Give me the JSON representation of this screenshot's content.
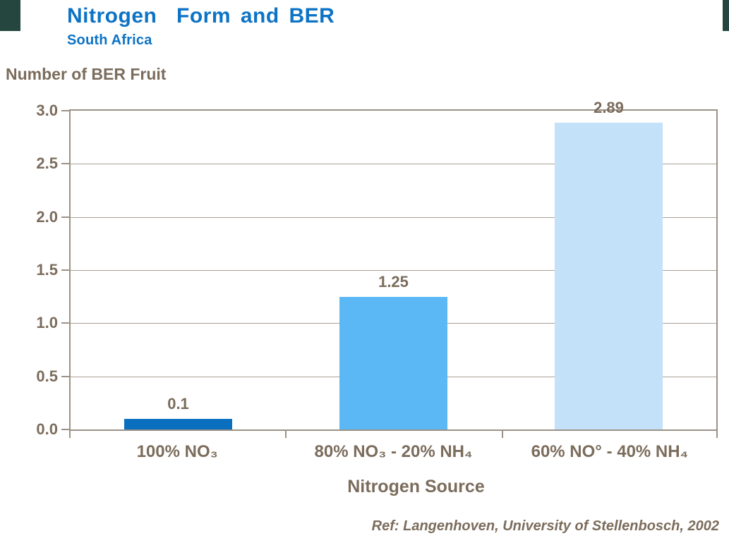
{
  "slide": {
    "title": "Nitrogen  Form and BER",
    "subtitle": "South Africa",
    "reference": "Ref: Langenhoven, University of Stellenbosch, 2002"
  },
  "chart_data": {
    "type": "bar",
    "title": "Nitrogen Form and BER",
    "subtitle": "South Africa",
    "ylabel": "Number of BER Fruit",
    "xlabel": "Nitrogen Source",
    "categories": [
      "100% NO₃",
      "80% NO₃ - 20% NH₄",
      "60% NO° - 40% NH₄"
    ],
    "values": [
      0.1,
      1.25,
      2.89
    ],
    "value_labels": [
      "0.1",
      "1.25",
      "2.89"
    ],
    "bar_colors": [
      "#0b6fc0",
      "#5cb8f5",
      "#c3e1f8"
    ],
    "ylim": [
      0,
      3
    ],
    "ytick_step": 0.5,
    "ytick_labels": [
      "3.0",
      "2.5",
      "2.0",
      "1.5",
      "1.0",
      "0.5",
      "0.0"
    ],
    "grid": true,
    "legend_position": "none",
    "annotation": "Ref: Langenhoven, University of Stellenbosch, 2002"
  },
  "colors": {
    "title_blue": "#0d73c5",
    "text_brown": "#7b6c5c",
    "axis_line": "#9c9286",
    "gridline": "#a8a096",
    "corner_teal": "#24463e"
  }
}
